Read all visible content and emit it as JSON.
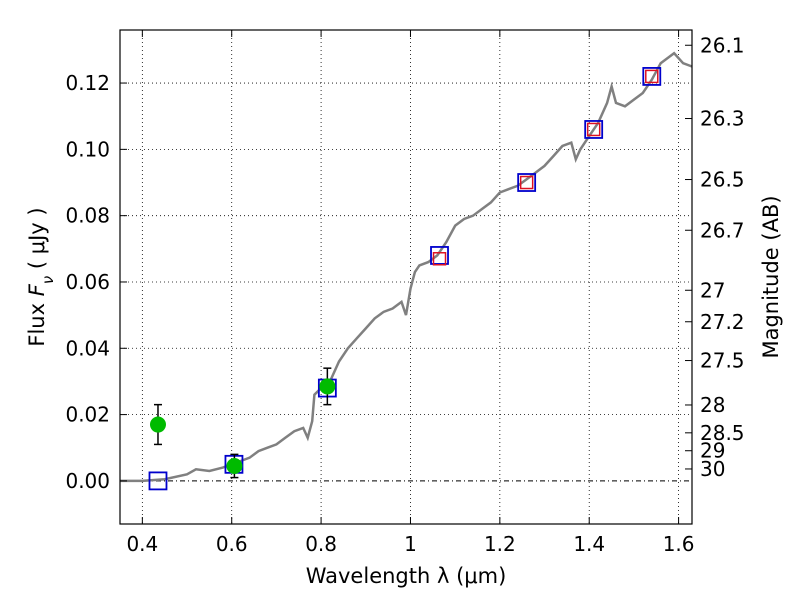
{
  "chart_data": {
    "type": "scatter",
    "xlabel": "Wavelength  λ (μm)",
    "ylabel": "Flux  F_ν  ( μJy )",
    "ylabel_parts": {
      "prefix": "Flux  ",
      "symbol": "F",
      "sub": "ν",
      "suffix": "  ( μJy )"
    },
    "right_label": "Magnitude (AB)",
    "xlim": [
      0.35,
      1.63
    ],
    "ylim": [
      -0.013,
      0.136
    ],
    "grid": true,
    "x_ticks": [
      0.4,
      0.6,
      0.8,
      1.0,
      1.2,
      1.4,
      1.6
    ],
    "x_tick_labels": [
      "0.4",
      "0.6",
      "0.8",
      "1",
      "1.2",
      "1.4",
      "1.6"
    ],
    "y_ticks": [
      0.0,
      0.02,
      0.04,
      0.06,
      0.08,
      0.1,
      0.12
    ],
    "y_tick_labels": [
      "0.00",
      "0.02",
      "0.04",
      "0.06",
      "0.08",
      "0.10",
      "0.12"
    ],
    "mag_ticks": [
      {
        "label": "26.1",
        "flux": 0.1314
      },
      {
        "label": "26.3",
        "flux": 0.1093
      },
      {
        "label": "26.5",
        "flux": 0.0909
      },
      {
        "label": "26.7",
        "flux": 0.0756
      },
      {
        "label": "27",
        "flux": 0.0575
      },
      {
        "label": "27.2",
        "flux": 0.048
      },
      {
        "label": "27.5",
        "flux": 0.0363
      },
      {
        "label": "28",
        "flux": 0.0229
      },
      {
        "label": "28.5",
        "flux": 0.0145
      },
      {
        "label": "29",
        "flux": 0.0091
      },
      {
        "label": "30",
        "flux": 0.0036
      }
    ],
    "series": [
      {
        "kind": "line",
        "color": "#808080",
        "points": [
          [
            0.35,
            0.0
          ],
          [
            0.4,
            0.0
          ],
          [
            0.45,
            0.0005
          ],
          [
            0.5,
            0.002
          ],
          [
            0.52,
            0.0035
          ],
          [
            0.55,
            0.003
          ],
          [
            0.58,
            0.004
          ],
          [
            0.6,
            0.005
          ],
          [
            0.62,
            0.006
          ],
          [
            0.64,
            0.007
          ],
          [
            0.66,
            0.009
          ],
          [
            0.68,
            0.01
          ],
          [
            0.7,
            0.011
          ],
          [
            0.72,
            0.013
          ],
          [
            0.74,
            0.015
          ],
          [
            0.76,
            0.016
          ],
          [
            0.77,
            0.013
          ],
          [
            0.78,
            0.018
          ],
          [
            0.785,
            0.026
          ],
          [
            0.8,
            0.028
          ],
          [
            0.82,
            0.03
          ],
          [
            0.84,
            0.036
          ],
          [
            0.86,
            0.04
          ],
          [
            0.88,
            0.043
          ],
          [
            0.9,
            0.046
          ],
          [
            0.92,
            0.049
          ],
          [
            0.94,
            0.051
          ],
          [
            0.96,
            0.052
          ],
          [
            0.98,
            0.054
          ],
          [
            0.99,
            0.05
          ],
          [
            1.0,
            0.058
          ],
          [
            1.01,
            0.063
          ],
          [
            1.02,
            0.065
          ],
          [
            1.04,
            0.066
          ],
          [
            1.06,
            0.068
          ],
          [
            1.08,
            0.072
          ],
          [
            1.1,
            0.077
          ],
          [
            1.12,
            0.079
          ],
          [
            1.14,
            0.08
          ],
          [
            1.16,
            0.082
          ],
          [
            1.18,
            0.084
          ],
          [
            1.2,
            0.087
          ],
          [
            1.22,
            0.088
          ],
          [
            1.24,
            0.089
          ],
          [
            1.26,
            0.091
          ],
          [
            1.28,
            0.093
          ],
          [
            1.3,
            0.095
          ],
          [
            1.32,
            0.098
          ],
          [
            1.34,
            0.101
          ],
          [
            1.36,
            0.102
          ],
          [
            1.37,
            0.097
          ],
          [
            1.38,
            0.1
          ],
          [
            1.4,
            0.104
          ],
          [
            1.42,
            0.108
          ],
          [
            1.44,
            0.114
          ],
          [
            1.45,
            0.119
          ],
          [
            1.46,
            0.114
          ],
          [
            1.48,
            0.113
          ],
          [
            1.5,
            0.115
          ],
          [
            1.52,
            0.117
          ],
          [
            1.54,
            0.121
          ],
          [
            1.56,
            0.126
          ],
          [
            1.58,
            0.128
          ],
          [
            1.59,
            0.129
          ],
          [
            1.61,
            0.126
          ],
          [
            1.63,
            0.125
          ]
        ]
      },
      {
        "kind": "open-square",
        "color": "#0000cc",
        "points": [
          [
            0.435,
            0.0
          ],
          [
            0.605,
            0.005
          ],
          [
            0.814,
            0.028
          ],
          [
            1.065,
            0.068
          ],
          [
            1.26,
            0.09
          ],
          [
            1.41,
            0.106
          ],
          [
            1.54,
            0.122
          ]
        ]
      },
      {
        "kind": "open-square",
        "color": "#dd1122",
        "points": [
          [
            1.065,
            0.067
          ],
          [
            1.26,
            0.09
          ],
          [
            1.41,
            0.106
          ],
          [
            1.54,
            0.122
          ]
        ]
      },
      {
        "kind": "point-with-error",
        "color": "#00bb00",
        "points": [
          {
            "x": 0.435,
            "y": 0.017,
            "err": 0.006
          },
          {
            "x": 0.606,
            "y": 0.0045,
            "err": 0.0035
          },
          {
            "x": 0.814,
            "y": 0.0285,
            "err": 0.0055
          }
        ]
      }
    ]
  }
}
